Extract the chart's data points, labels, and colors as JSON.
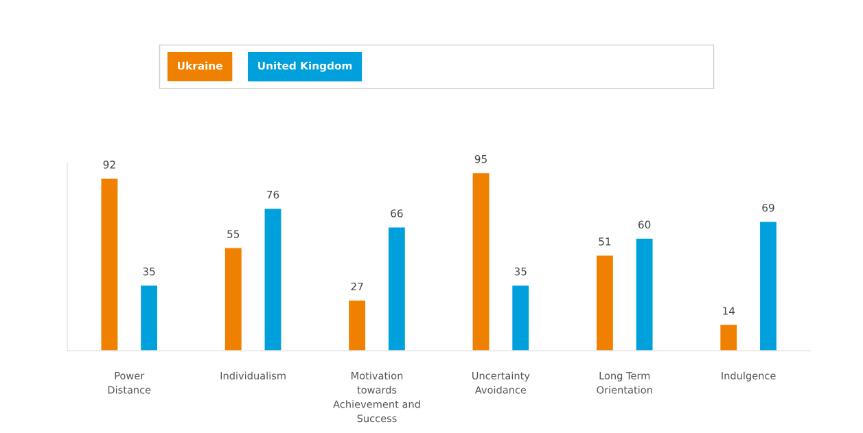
{
  "chart_data": {
    "type": "bar",
    "categories": [
      "Power\nDistance",
      "Individualism",
      "Motivation\ntowards\nAchievement and\nSuccess",
      "Uncertainty\nAvoidance",
      "Long Term\nOrientation",
      "Indulgence"
    ],
    "series": [
      {
        "name": "Ukraine",
        "color": "#f08000",
        "values": [
          92,
          55,
          27,
          95,
          51,
          14
        ]
      },
      {
        "name": "United Kingdom",
        "color": "#00a0dc",
        "values": [
          35,
          76,
          66,
          35,
          60,
          69
        ]
      }
    ],
    "ylim": [
      0,
      100
    ],
    "tick_labels": "x",
    "data_labels": true,
    "legend": "top",
    "grid": false
  }
}
